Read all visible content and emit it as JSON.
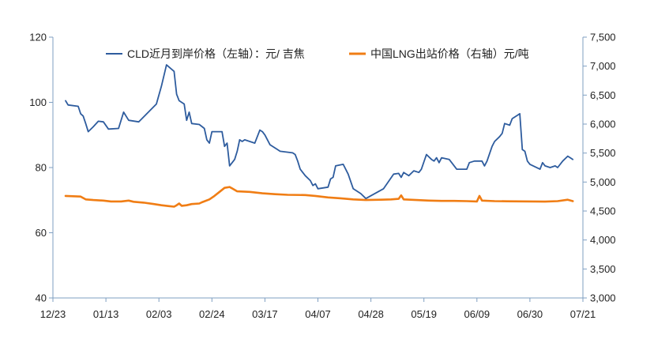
{
  "chart_data": {
    "type": "line",
    "title": "",
    "xlabel": "",
    "ylabel": "",
    "x_ticks": [
      "12/23",
      "01/13",
      "02/03",
      "02/24",
      "03/17",
      "04/07",
      "04/28",
      "05/19",
      "06/09",
      "06/30",
      "07/21"
    ],
    "y_left": {
      "ticks": [
        "40",
        "60",
        "80",
        "100",
        "120"
      ],
      "lim": [
        40,
        120
      ]
    },
    "y_right": {
      "ticks": [
        "3,000",
        "3,500",
        "4,000",
        "4,500",
        "5,000",
        "5,500",
        "6,000",
        "6,500",
        "7,000",
        "7,500"
      ],
      "lim": [
        3000,
        7500
      ]
    },
    "legend_position": "top",
    "grid": false,
    "series": [
      {
        "name": "CLD近月到岸价格（左轴）：元/ 吉焦",
        "axis": "left",
        "color": "#2E5C9E",
        "points": [
          [
            "2023-12-28",
            100.5
          ],
          [
            "2023-12-29",
            99.2
          ],
          [
            "2024-01-02",
            98.8
          ],
          [
            "2024-01-03",
            96.5
          ],
          [
            "2024-01-04",
            95.8
          ],
          [
            "2024-01-05",
            93.5
          ],
          [
            "2024-01-06",
            91.0
          ],
          [
            "2024-01-08",
            92.5
          ],
          [
            "2024-01-10",
            94.2
          ],
          [
            "2024-01-12",
            94.0
          ],
          [
            "2024-01-14",
            91.8
          ],
          [
            "2024-01-18",
            92.0
          ],
          [
            "2024-01-20",
            97.0
          ],
          [
            "2024-01-22",
            94.5
          ],
          [
            "2024-01-26",
            94.0
          ],
          [
            "2024-02-02",
            99.5
          ],
          [
            "2024-02-04",
            105.0
          ],
          [
            "2024-02-06",
            111.5
          ],
          [
            "2024-02-09",
            109.5
          ],
          [
            "2024-02-10",
            102.5
          ],
          [
            "2024-02-11",
            100.5
          ],
          [
            "2024-02-13",
            99.5
          ],
          [
            "2024-02-14",
            94.5
          ],
          [
            "2024-02-15",
            97.0
          ],
          [
            "2024-02-16",
            93.5
          ],
          [
            "2024-02-19",
            93.2
          ],
          [
            "2024-02-21",
            92.0
          ],
          [
            "2024-02-22",
            88.5
          ],
          [
            "2024-02-23",
            87.5
          ],
          [
            "2024-02-24",
            91.0
          ],
          [
            "2024-02-28",
            91.0
          ],
          [
            "2024-02-29",
            86.5
          ],
          [
            "2024-03-01",
            87.5
          ],
          [
            "2024-03-02",
            80.5
          ],
          [
            "2024-03-04",
            82.5
          ],
          [
            "2024-03-05",
            85.0
          ],
          [
            "2024-03-06",
            88.5
          ],
          [
            "2024-03-07",
            88.0
          ],
          [
            "2024-03-08",
            88.5
          ],
          [
            "2024-03-12",
            87.5
          ],
          [
            "2024-03-14",
            91.5
          ],
          [
            "2024-03-15",
            91.0
          ],
          [
            "2024-03-16",
            90.0
          ],
          [
            "2024-03-18",
            87.0
          ],
          [
            "2024-03-21",
            85.5
          ],
          [
            "2024-03-22",
            85.0
          ],
          [
            "2024-03-27",
            84.5
          ],
          [
            "2024-03-28",
            84.0
          ],
          [
            "2024-03-29",
            82.0
          ],
          [
            "2024-03-30",
            79.5
          ],
          [
            "2024-04-01",
            77.5
          ],
          [
            "2024-04-03",
            76.0
          ],
          [
            "2024-04-04",
            74.5
          ],
          [
            "2024-04-05",
            75.0
          ],
          [
            "2024-04-06",
            73.5
          ],
          [
            "2024-04-10",
            74.0
          ],
          [
            "2024-04-11",
            76.5
          ],
          [
            "2024-04-12",
            77.0
          ],
          [
            "2024-04-13",
            80.5
          ],
          [
            "2024-04-16",
            81.0
          ],
          [
            "2024-04-18",
            78.0
          ],
          [
            "2024-04-20",
            73.5
          ],
          [
            "2024-04-23",
            72.0
          ],
          [
            "2024-04-25",
            70.5
          ],
          [
            "2024-05-02",
            73.5
          ],
          [
            "2024-05-06",
            78.0
          ],
          [
            "2024-05-08",
            78.2
          ],
          [
            "2024-05-09",
            77.0
          ],
          [
            "2024-05-10",
            78.5
          ],
          [
            "2024-05-12",
            77.5
          ],
          [
            "2024-05-14",
            79.0
          ],
          [
            "2024-05-16",
            78.5
          ],
          [
            "2024-05-17",
            79.5
          ],
          [
            "2024-05-19",
            84.0
          ],
          [
            "2024-05-21",
            82.5
          ],
          [
            "2024-05-22",
            82.0
          ],
          [
            "2024-05-23",
            83.0
          ],
          [
            "2024-05-24",
            81.5
          ],
          [
            "2024-05-25",
            83.0
          ],
          [
            "2024-05-28",
            82.5
          ],
          [
            "2024-05-31",
            79.5
          ],
          [
            "2024-06-04",
            79.5
          ],
          [
            "2024-06-05",
            81.5
          ],
          [
            "2024-06-07",
            82.0
          ],
          [
            "2024-06-10",
            82.0
          ],
          [
            "2024-06-11",
            80.5
          ],
          [
            "2024-06-12",
            82.0
          ],
          [
            "2024-06-14",
            86.5
          ],
          [
            "2024-06-15",
            88.0
          ],
          [
            "2024-06-17",
            89.5
          ],
          [
            "2024-06-18",
            90.5
          ],
          [
            "2024-06-19",
            93.5
          ],
          [
            "2024-06-21",
            93.0
          ],
          [
            "2024-06-22",
            95.0
          ],
          [
            "2024-06-24",
            96.0
          ],
          [
            "2024-06-25",
            96.5
          ],
          [
            "2024-06-26",
            85.5
          ],
          [
            "2024-06-27",
            85.0
          ],
          [
            "2024-06-28",
            82.0
          ],
          [
            "2024-06-29",
            81.0
          ],
          [
            "2024-07-03",
            79.5
          ],
          [
            "2024-07-04",
            81.5
          ],
          [
            "2024-07-05",
            80.5
          ],
          [
            "2024-07-07",
            80.0
          ],
          [
            "2024-07-09",
            80.5
          ],
          [
            "2024-07-10",
            80.0
          ],
          [
            "2024-07-12",
            82.0
          ],
          [
            "2024-07-14",
            83.5
          ],
          [
            "2024-07-15",
            83.0
          ],
          [
            "2024-07-16",
            82.5
          ]
        ]
      },
      {
        "name": "中国LNG出站价格（右轴）元/吨",
        "axis": "right",
        "color": "#F07D14",
        "points": [
          [
            "2023-12-28",
            4760
          ],
          [
            "2024-01-03",
            4750
          ],
          [
            "2024-01-05",
            4700
          ],
          [
            "2024-01-08",
            4690
          ],
          [
            "2024-01-12",
            4680
          ],
          [
            "2024-01-15",
            4665
          ],
          [
            "2024-01-19",
            4665
          ],
          [
            "2024-01-22",
            4680
          ],
          [
            "2024-01-24",
            4660
          ],
          [
            "2024-01-28",
            4645
          ],
          [
            "2024-02-01",
            4620
          ],
          [
            "2024-02-04",
            4600
          ],
          [
            "2024-02-07",
            4585
          ],
          [
            "2024-02-09",
            4575
          ],
          [
            "2024-02-10",
            4600
          ],
          [
            "2024-02-11",
            4630
          ],
          [
            "2024-02-12",
            4590
          ],
          [
            "2024-02-14",
            4600
          ],
          [
            "2024-02-16",
            4620
          ],
          [
            "2024-02-19",
            4630
          ],
          [
            "2024-02-20",
            4650
          ],
          [
            "2024-02-23",
            4700
          ],
          [
            "2024-02-25",
            4760
          ],
          [
            "2024-02-27",
            4830
          ],
          [
            "2024-02-29",
            4900
          ],
          [
            "2024-03-02",
            4915
          ],
          [
            "2024-03-03",
            4890
          ],
          [
            "2024-03-05",
            4840
          ],
          [
            "2024-03-10",
            4830
          ],
          [
            "2024-03-15",
            4805
          ],
          [
            "2024-03-20",
            4790
          ],
          [
            "2024-03-25",
            4780
          ],
          [
            "2024-04-01",
            4775
          ],
          [
            "2024-04-05",
            4760
          ],
          [
            "2024-04-10",
            4735
          ],
          [
            "2024-04-15",
            4720
          ],
          [
            "2024-04-20",
            4700
          ],
          [
            "2024-04-25",
            4690
          ],
          [
            "2024-05-01",
            4695
          ],
          [
            "2024-05-05",
            4700
          ],
          [
            "2024-05-08",
            4710
          ],
          [
            "2024-05-09",
            4770
          ],
          [
            "2024-05-10",
            4700
          ],
          [
            "2024-05-15",
            4690
          ],
          [
            "2024-05-20",
            4680
          ],
          [
            "2024-05-25",
            4675
          ],
          [
            "2024-05-30",
            4675
          ],
          [
            "2024-06-04",
            4670
          ],
          [
            "2024-06-08",
            4665
          ],
          [
            "2024-06-09",
            4760
          ],
          [
            "2024-06-10",
            4680
          ],
          [
            "2024-06-15",
            4670
          ],
          [
            "2024-06-20",
            4668
          ],
          [
            "2024-06-25",
            4666
          ],
          [
            "2024-06-30",
            4665
          ],
          [
            "2024-07-05",
            4662
          ],
          [
            "2024-07-10",
            4670
          ],
          [
            "2024-07-14",
            4695
          ],
          [
            "2024-07-16",
            4670
          ]
        ]
      }
    ]
  }
}
